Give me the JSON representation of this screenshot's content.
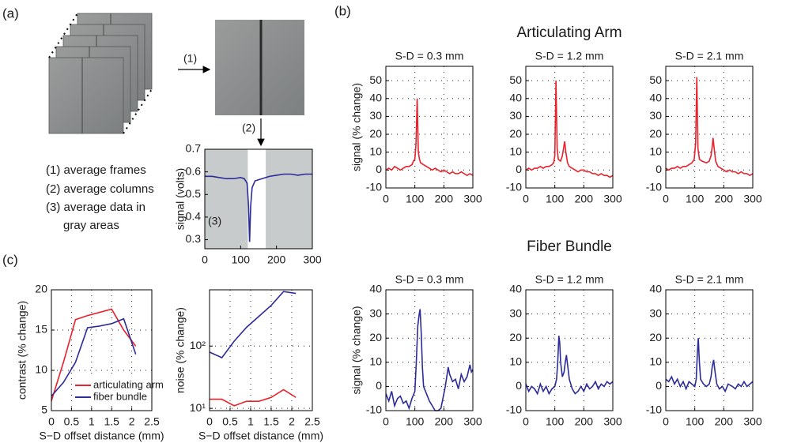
{
  "panel_labels": [
    "(a)",
    "(b)",
    "(c)"
  ],
  "diagram": {
    "steps": [
      "(1)",
      "(2)"
    ],
    "notes": [
      "(1) average frames",
      "(2) average columns",
      "(3) average data in",
      "gray areas"
    ]
  },
  "group_titles": [
    "Articulating Arm",
    "Fiber Bundle"
  ],
  "chart_data": [
    {
      "type": "line",
      "ylabel": "signal (volts)",
      "annotation": "(3)",
      "color": "#2b2b99",
      "x": [
        0,
        20,
        40,
        60,
        80,
        100,
        110,
        118,
        122,
        125,
        128,
        132,
        140,
        150,
        160,
        180,
        200,
        220,
        240,
        260,
        280,
        300
      ],
      "values": [
        0.58,
        0.58,
        0.575,
        0.57,
        0.57,
        0.575,
        0.57,
        0.55,
        0.45,
        0.29,
        0.45,
        0.53,
        0.56,
        0.565,
        0.57,
        0.58,
        0.585,
        0.59,
        0.59,
        0.585,
        0.59,
        0.59
      ],
      "shaded": [
        [
          0,
          120
        ],
        [
          170,
          300
        ]
      ],
      "xlim": [
        0,
        300
      ],
      "xticks": [
        0,
        100,
        200,
        300
      ],
      "ylim": [
        0.26,
        0.7
      ],
      "yticks": [
        0.3,
        0.4,
        0.5,
        0.6,
        0.7
      ],
      "grid": false
    },
    {
      "type": "line",
      "title": "S-D = 0.3 mm",
      "ylabel": "signal (% change)",
      "color": "#e8212b",
      "x": [
        0,
        10,
        20,
        30,
        40,
        50,
        60,
        70,
        80,
        90,
        95,
        100,
        104,
        108,
        112,
        116,
        120,
        130,
        140,
        150,
        160,
        170,
        180,
        190,
        200,
        210,
        220,
        230,
        240,
        250,
        260,
        270,
        280,
        290,
        300
      ],
      "values": [
        0,
        1,
        0,
        2,
        1,
        0,
        1,
        2,
        2,
        3,
        5,
        6,
        15,
        40,
        10,
        6,
        4,
        3,
        2,
        1,
        0,
        1,
        0,
        -1,
        0,
        -1,
        -2,
        -1,
        -2,
        -2,
        -1,
        -2,
        -3,
        -2,
        -3
      ],
      "xlim": [
        0,
        300
      ],
      "xticks": [
        0,
        100,
        200,
        300
      ],
      "ylim": [
        -10,
        58
      ],
      "yticks": [
        -10,
        0,
        10,
        20,
        30,
        40,
        50
      ],
      "grid": true
    },
    {
      "type": "line",
      "title": "S-D = 1.2 mm",
      "color": "#e8212b",
      "x": [
        0,
        10,
        20,
        30,
        40,
        50,
        60,
        70,
        80,
        90,
        96,
        100,
        104,
        108,
        112,
        120,
        126,
        130,
        134,
        138,
        144,
        150,
        160,
        170,
        180,
        190,
        200,
        210,
        220,
        230,
        240,
        250,
        260,
        270,
        280,
        290,
        300
      ],
      "values": [
        0,
        1,
        0,
        1,
        1,
        2,
        1,
        2,
        2,
        3,
        4,
        8,
        50,
        12,
        6,
        5,
        8,
        12,
        16,
        10,
        4,
        2,
        1,
        0,
        -1,
        0,
        0,
        -1,
        -1,
        -2,
        -2,
        -3,
        -2,
        -3,
        -3,
        -4,
        -3
      ],
      "xlim": [
        0,
        300
      ],
      "xticks": [
        0,
        100,
        200,
        300
      ],
      "ylim": [
        -10,
        58
      ],
      "yticks": [
        -10,
        0,
        10,
        20,
        30,
        40,
        50
      ],
      "grid": true
    },
    {
      "type": "line",
      "title": "S-D = 2.1 mm",
      "color": "#e8212b",
      "x": [
        0,
        10,
        20,
        30,
        40,
        50,
        60,
        70,
        80,
        90,
        98,
        103,
        107,
        111,
        116,
        125,
        140,
        150,
        156,
        160,
        163,
        167,
        172,
        180,
        190,
        200,
        210,
        220,
        230,
        240,
        250,
        260,
        270,
        280,
        290,
        300
      ],
      "values": [
        1,
        0,
        1,
        1,
        2,
        1,
        2,
        2,
        3,
        4,
        6,
        15,
        52,
        12,
        6,
        5,
        4,
        5,
        8,
        13,
        18,
        12,
        5,
        2,
        1,
        0,
        -1,
        0,
        -1,
        -1,
        -2,
        -1,
        -2,
        -2,
        -3,
        -2
      ],
      "xlim": [
        0,
        300
      ],
      "xticks": [
        0,
        100,
        200,
        300
      ],
      "ylim": [
        -10,
        58
      ],
      "yticks": [
        -10,
        0,
        10,
        20,
        30,
        40,
        50
      ],
      "grid": true
    },
    {
      "type": "line",
      "title": "S-D = 0.3 mm",
      "ylabel": "signal (% change)",
      "color": "#2b2b99",
      "x": [
        0,
        10,
        20,
        30,
        40,
        50,
        60,
        70,
        80,
        90,
        100,
        105,
        110,
        115,
        118,
        122,
        126,
        130,
        140,
        150,
        160,
        170,
        180,
        190,
        200,
        205,
        210,
        215,
        220,
        230,
        240,
        250,
        260,
        270,
        280,
        290,
        295,
        300
      ],
      "values": [
        -3,
        -6,
        -2,
        -8,
        -5,
        -4,
        -7,
        -6,
        -9,
        -5,
        -2,
        10,
        25,
        30,
        32,
        22,
        8,
        0,
        -3,
        -6,
        -8,
        -10,
        -10,
        -9,
        -3,
        0,
        4,
        8,
        5,
        2,
        3,
        -1,
        5,
        2,
        4,
        9,
        6,
        7
      ],
      "xlim": [
        0,
        300
      ],
      "xticks": [
        0,
        100,
        200,
        300
      ],
      "ylim": [
        -10,
        40
      ],
      "yticks": [
        -10,
        0,
        10,
        20,
        30,
        40
      ],
      "grid": true
    },
    {
      "type": "line",
      "title": "S-D = 1.2 mm",
      "color": "#2b2b99",
      "x": [
        0,
        10,
        20,
        30,
        40,
        50,
        60,
        70,
        80,
        90,
        100,
        106,
        110,
        114,
        117,
        120,
        126,
        132,
        136,
        140,
        145,
        150,
        160,
        170,
        180,
        190,
        200,
        210,
        220,
        230,
        240,
        250,
        260,
        270,
        280,
        290,
        300
      ],
      "values": [
        1,
        -2,
        0,
        -1,
        -3,
        1,
        -2,
        0,
        -3,
        -1,
        0,
        3,
        10,
        21,
        18,
        10,
        4,
        6,
        10,
        13,
        8,
        3,
        -1,
        -3,
        -2,
        0,
        -2,
        1,
        -1,
        0,
        2,
        -1,
        1,
        0,
        2,
        1,
        2
      ],
      "xlim": [
        0,
        300
      ],
      "xticks": [
        0,
        100,
        200,
        300
      ],
      "ylim": [
        -10,
        40
      ],
      "yticks": [
        -10,
        0,
        10,
        20,
        30,
        40
      ],
      "grid": true
    },
    {
      "type": "line",
      "title": "S-D = 2.1 mm",
      "color": "#2b2b99",
      "x": [
        0,
        10,
        20,
        30,
        40,
        50,
        60,
        70,
        80,
        90,
        100,
        105,
        109,
        112,
        116,
        120,
        130,
        140,
        150,
        156,
        160,
        165,
        170,
        176,
        185,
        195,
        205,
        215,
        230,
        240,
        250,
        260,
        270,
        280,
        290,
        300
      ],
      "values": [
        3,
        2,
        4,
        1,
        3,
        0,
        2,
        -1,
        2,
        1,
        0,
        3,
        14,
        20,
        10,
        3,
        1,
        0,
        1,
        4,
        8,
        11,
        6,
        1,
        -1,
        0,
        -2,
        1,
        0,
        -1,
        1,
        0,
        2,
        0,
        1,
        2
      ],
      "xlim": [
        0,
        300
      ],
      "xticks": [
        0,
        100,
        200,
        300
      ],
      "ylim": [
        -10,
        40
      ],
      "yticks": [
        -10,
        0,
        10,
        20,
        30,
        40
      ],
      "grid": true
    },
    {
      "type": "line",
      "xlabel": "S−D offset distance (mm)",
      "ylabel": "contrast (% change)",
      "x": [
        0,
        0.3,
        0.6,
        0.9,
        1.2,
        1.5,
        1.8,
        2.1
      ],
      "series": [
        {
          "name": "articulating arm",
          "color": "#e8212b",
          "values": [
            6.2,
            11,
            16.3,
            16.8,
            17.2,
            17.6,
            15,
            13
          ]
        },
        {
          "name": "fiber bundle",
          "color": "#2b2b99",
          "values": [
            6.8,
            8.5,
            11,
            15.3,
            15.5,
            15.8,
            16.4,
            12
          ]
        }
      ],
      "legend": "lower right",
      "xlim": [
        0,
        2.5
      ],
      "xticks": [
        0,
        0.5,
        1,
        1.5,
        2,
        2.5
      ],
      "ylim": [
        5,
        20
      ],
      "yticks": [
        5,
        10,
        15,
        20
      ],
      "grid": true
    },
    {
      "type": "line",
      "xlabel": "S−D offset distance (mm)",
      "ylabel": "noise (% change)",
      "log_y": true,
      "x": [
        0,
        0.3,
        0.6,
        0.9,
        1.2,
        1.5,
        1.8,
        2.1
      ],
      "series": [
        {
          "color": "#2b2b99",
          "values": [
            80,
            65,
            120,
            200,
            300,
            450,
            750,
            700
          ]
        },
        {
          "color": "#e8212b",
          "values": [
            14,
            14,
            11,
            13,
            13,
            15,
            20,
            15
          ]
        }
      ],
      "xlim": [
        0,
        2.5
      ],
      "xticks": [
        0,
        0.5,
        1,
        1.5,
        2,
        2.5
      ],
      "ylim": [
        9.2,
        800
      ],
      "yticks": [
        {
          "value": 10,
          "label": "10¹"
        },
        {
          "value": 100,
          "label": "10²"
        }
      ],
      "grid": true
    }
  ]
}
